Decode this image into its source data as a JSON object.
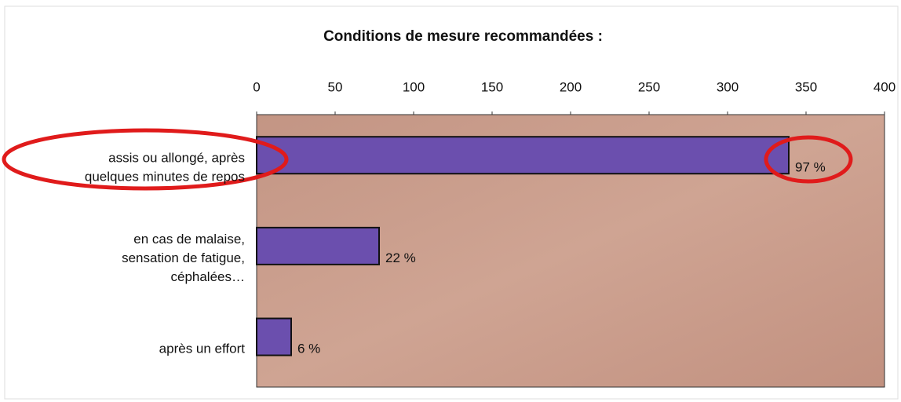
{
  "chart_data": {
    "type": "hbar",
    "title": "Conditions de mesure recommandées :",
    "categories": [
      [
        "assis ou allongé, après",
        "quelques minutes de repos"
      ],
      [
        "en cas de malaise,",
        "sensation de fatigue,",
        "céphalées…"
      ],
      [
        "après un effort"
      ]
    ],
    "values": [
      339,
      78,
      22
    ],
    "annotations": [
      "97 %",
      "22 %",
      "6 %"
    ],
    "color": "#6b4fae",
    "xlim": [
      0,
      400
    ],
    "xticks": [
      0,
      50,
      100,
      150,
      200,
      250,
      300,
      350,
      400
    ]
  }
}
